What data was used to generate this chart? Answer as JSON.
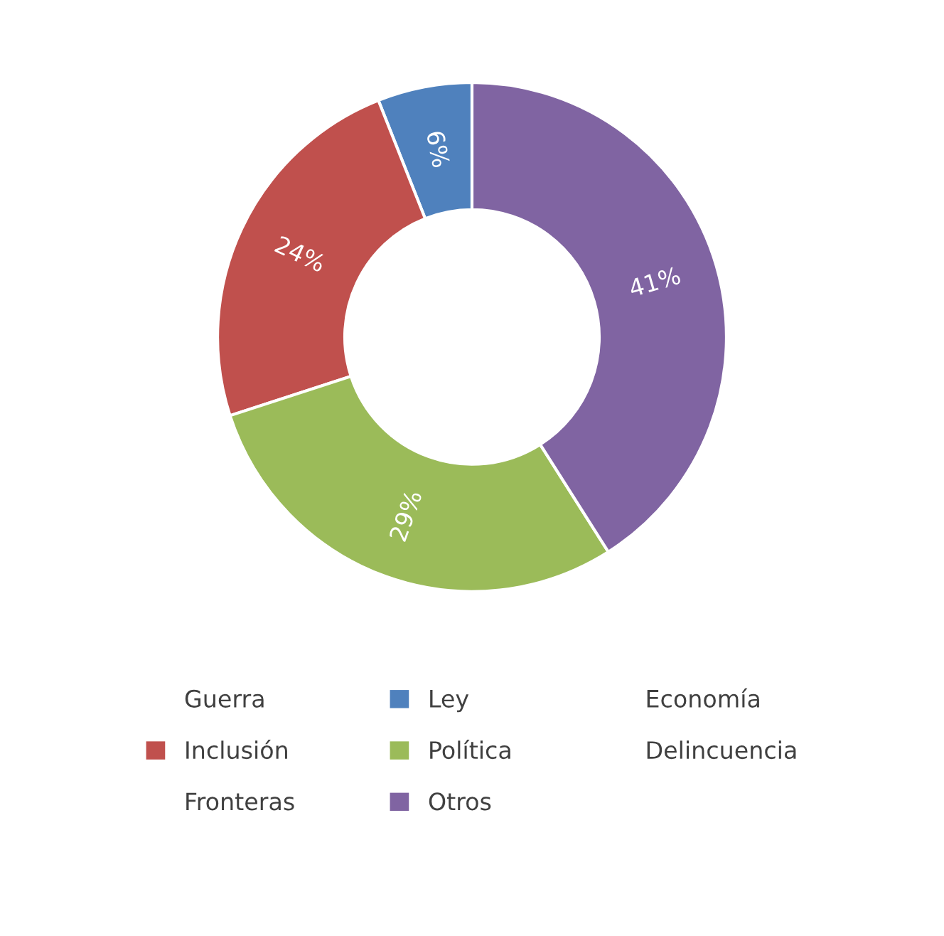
{
  "chart_data": {
    "type": "donut",
    "categories": [
      "Guerra",
      "Ley",
      "Economía",
      "Inclusión",
      "Política",
      "Delincuencia",
      "Fronteras",
      "Otros"
    ],
    "values": [
      0,
      6,
      0,
      24,
      29,
      0,
      0,
      41
    ],
    "colors": [
      null,
      "#4f81bd",
      null,
      "#c0504d",
      "#9bbb59",
      null,
      null,
      "#8064a2"
    ],
    "value_labels": [
      null,
      "6%",
      null,
      "24%",
      "29%",
      null,
      null,
      "41%"
    ],
    "legend": "bottom"
  }
}
